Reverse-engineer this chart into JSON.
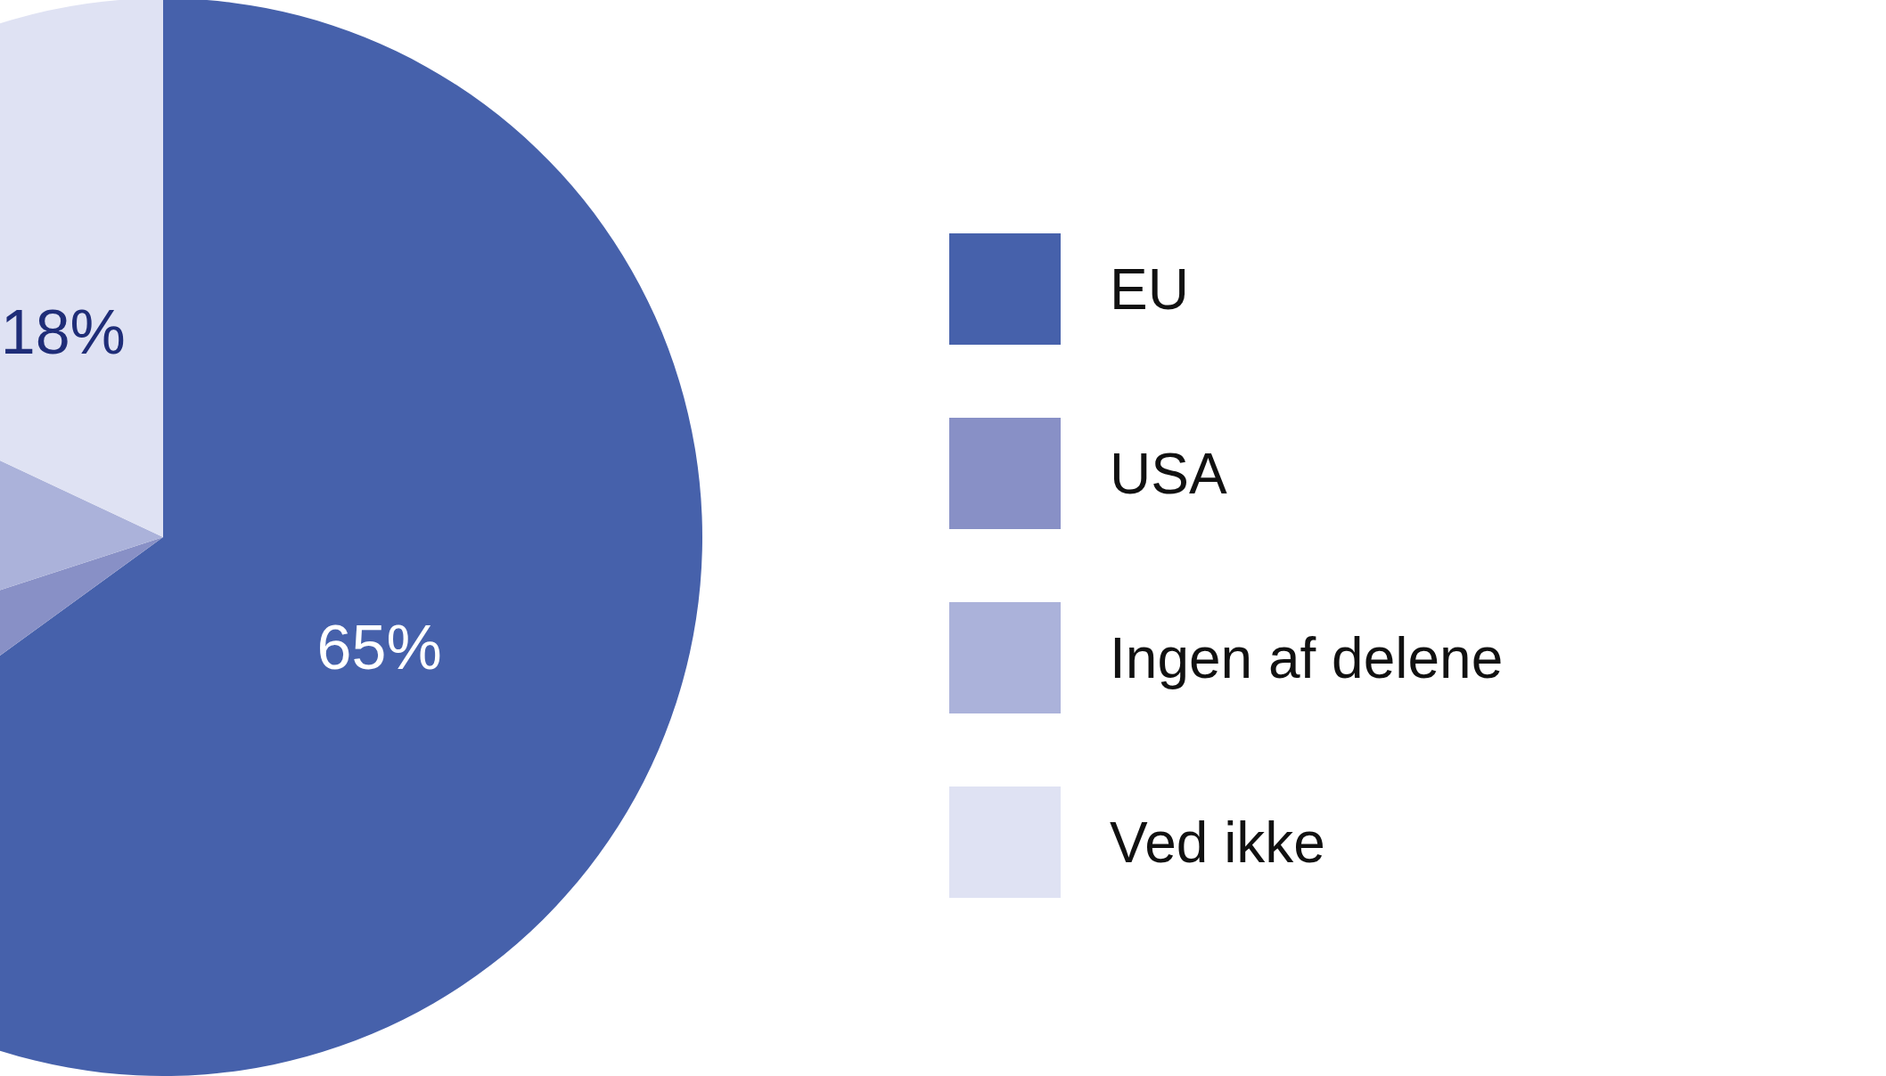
{
  "chart_data": {
    "type": "pie",
    "categories": [
      "EU",
      "USA",
      "Ingen af delene",
      "Ved ikke"
    ],
    "values": [
      65,
      5,
      12,
      18
    ],
    "colors": [
      "#4661ab",
      "#8890c6",
      "#abb2da",
      "#dfe2f3"
    ],
    "value_labels": [
      "65%",
      null,
      null,
      "18%"
    ],
    "legend": "right"
  }
}
